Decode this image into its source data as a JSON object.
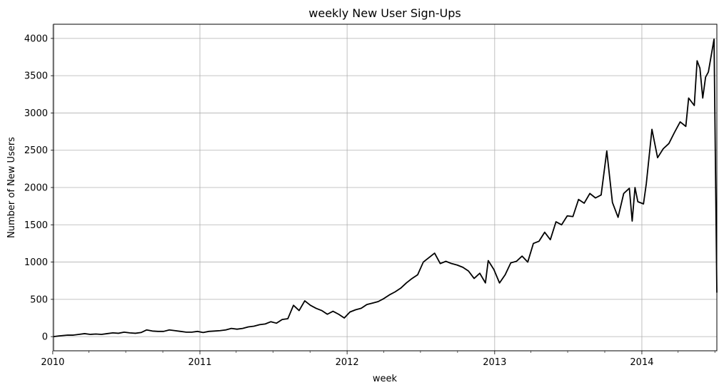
{
  "chart_data": {
    "type": "line",
    "title": "weekly New User Sign-Ups",
    "xlabel": "week",
    "ylabel": "Number of New Users",
    "x_range": [
      "2010-01-03",
      "2014-07-06"
    ],
    "ylim": [
      -190,
      4190
    ],
    "grid": true,
    "line_color": "#000000",
    "x_ticks": [
      {
        "date": "2010-01-01",
        "label": "2010"
      },
      {
        "date": "2011-01-01",
        "label": "2011"
      },
      {
        "date": "2012-01-01",
        "label": "2012"
      },
      {
        "date": "2013-01-01",
        "label": "2013"
      },
      {
        "date": "2014-01-01",
        "label": "2014"
      }
    ],
    "y_ticks": [
      0,
      500,
      1000,
      1500,
      2000,
      2500,
      3000,
      3500,
      4000
    ],
    "series": [
      {
        "points": [
          [
            "2010-01-03",
            0
          ],
          [
            "2010-01-17",
            10
          ],
          [
            "2010-02-07",
            20
          ],
          [
            "2010-02-21",
            20
          ],
          [
            "2010-03-07",
            30
          ],
          [
            "2010-03-21",
            40
          ],
          [
            "2010-04-04",
            30
          ],
          [
            "2010-04-18",
            35
          ],
          [
            "2010-05-02",
            30
          ],
          [
            "2010-05-16",
            40
          ],
          [
            "2010-05-30",
            50
          ],
          [
            "2010-06-13",
            45
          ],
          [
            "2010-06-27",
            60
          ],
          [
            "2010-07-11",
            50
          ],
          [
            "2010-07-25",
            45
          ],
          [
            "2010-08-08",
            55
          ],
          [
            "2010-08-22",
            90
          ],
          [
            "2010-09-05",
            75
          ],
          [
            "2010-09-19",
            70
          ],
          [
            "2010-10-03",
            70
          ],
          [
            "2010-10-17",
            90
          ],
          [
            "2010-10-31",
            80
          ],
          [
            "2010-11-14",
            70
          ],
          [
            "2010-11-28",
            60
          ],
          [
            "2010-12-12",
            60
          ],
          [
            "2010-12-26",
            70
          ],
          [
            "2011-01-09",
            55
          ],
          [
            "2011-01-23",
            70
          ],
          [
            "2011-02-06",
            75
          ],
          [
            "2011-02-20",
            80
          ],
          [
            "2011-03-06",
            90
          ],
          [
            "2011-03-20",
            110
          ],
          [
            "2011-04-03",
            100
          ],
          [
            "2011-04-17",
            110
          ],
          [
            "2011-05-01",
            130
          ],
          [
            "2011-05-15",
            140
          ],
          [
            "2011-05-29",
            160
          ],
          [
            "2011-06-12",
            170
          ],
          [
            "2011-06-26",
            200
          ],
          [
            "2011-07-10",
            180
          ],
          [
            "2011-07-24",
            230
          ],
          [
            "2011-08-07",
            240
          ],
          [
            "2011-08-21",
            420
          ],
          [
            "2011-09-04",
            350
          ],
          [
            "2011-09-18",
            480
          ],
          [
            "2011-10-02",
            420
          ],
          [
            "2011-10-16",
            380
          ],
          [
            "2011-10-30",
            350
          ],
          [
            "2011-11-13",
            300
          ],
          [
            "2011-11-27",
            340
          ],
          [
            "2011-12-11",
            300
          ],
          [
            "2011-12-25",
            250
          ],
          [
            "2012-01-08",
            330
          ],
          [
            "2012-01-22",
            360
          ],
          [
            "2012-02-05",
            380
          ],
          [
            "2012-02-19",
            430
          ],
          [
            "2012-03-04",
            450
          ],
          [
            "2012-03-18",
            470
          ],
          [
            "2012-04-01",
            510
          ],
          [
            "2012-04-15",
            560
          ],
          [
            "2012-04-29",
            600
          ],
          [
            "2012-05-13",
            650
          ],
          [
            "2012-05-27",
            720
          ],
          [
            "2012-06-10",
            780
          ],
          [
            "2012-06-24",
            830
          ],
          [
            "2012-07-08",
            1000
          ],
          [
            "2012-07-22",
            1060
          ],
          [
            "2012-08-05",
            1120
          ],
          [
            "2012-08-19",
            980
          ],
          [
            "2012-09-02",
            1010
          ],
          [
            "2012-09-16",
            980
          ],
          [
            "2012-09-30",
            960
          ],
          [
            "2012-10-14",
            930
          ],
          [
            "2012-10-28",
            880
          ],
          [
            "2012-11-11",
            780
          ],
          [
            "2012-11-25",
            850
          ],
          [
            "2012-12-09",
            720
          ],
          [
            "2012-12-16",
            1020
          ],
          [
            "2012-12-30",
            900
          ],
          [
            "2013-01-13",
            720
          ],
          [
            "2013-01-27",
            830
          ],
          [
            "2013-02-10",
            990
          ],
          [
            "2013-02-24",
            1010
          ],
          [
            "2013-03-10",
            1080
          ],
          [
            "2013-03-24",
            1000
          ],
          [
            "2013-04-07",
            1250
          ],
          [
            "2013-04-21",
            1280
          ],
          [
            "2013-05-05",
            1400
          ],
          [
            "2013-05-19",
            1300
          ],
          [
            "2013-06-02",
            1540
          ],
          [
            "2013-06-16",
            1500
          ],
          [
            "2013-06-30",
            1620
          ],
          [
            "2013-07-14",
            1610
          ],
          [
            "2013-07-28",
            1840
          ],
          [
            "2013-08-11",
            1790
          ],
          [
            "2013-08-25",
            1920
          ],
          [
            "2013-09-08",
            1860
          ],
          [
            "2013-09-22",
            1900
          ],
          [
            "2013-10-06",
            2490
          ],
          [
            "2013-10-20",
            1800
          ],
          [
            "2013-11-03",
            1600
          ],
          [
            "2013-11-17",
            1920
          ],
          [
            "2013-12-01",
            1990
          ],
          [
            "2013-12-08",
            1550
          ],
          [
            "2013-12-15",
            2000
          ],
          [
            "2013-12-22",
            1810
          ],
          [
            "2014-01-05",
            1780
          ],
          [
            "2014-01-12",
            2050
          ],
          [
            "2014-01-26",
            2780
          ],
          [
            "2014-02-09",
            2400
          ],
          [
            "2014-02-23",
            2520
          ],
          [
            "2014-03-09",
            2590
          ],
          [
            "2014-03-23",
            2740
          ],
          [
            "2014-04-06",
            2880
          ],
          [
            "2014-04-20",
            2820
          ],
          [
            "2014-04-27",
            3200
          ],
          [
            "2014-05-11",
            3100
          ],
          [
            "2014-05-18",
            3700
          ],
          [
            "2014-05-25",
            3600
          ],
          [
            "2014-06-01",
            3200
          ],
          [
            "2014-06-08",
            3480
          ],
          [
            "2014-06-15",
            3550
          ],
          [
            "2014-06-29",
            3990
          ],
          [
            "2014-07-06",
            590
          ]
        ]
      }
    ]
  }
}
